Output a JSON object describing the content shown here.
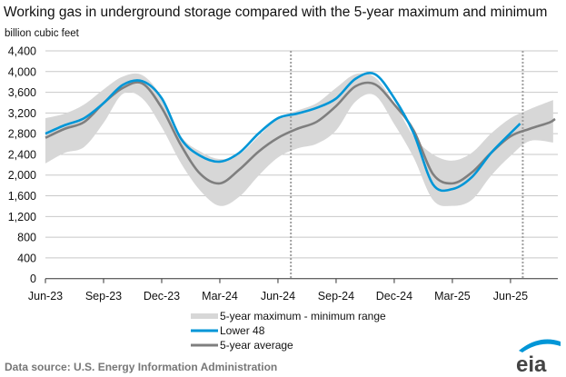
{
  "chart_data": {
    "type": "line",
    "title": "Working gas in underground  storage compared with the 5-year maximum and minimum",
    "ylabel": "billion cubic feet",
    "xlabel": "",
    "ylim": [
      0,
      4400
    ],
    "yticks": [
      "0",
      "400",
      "800",
      "1,200",
      "1,600",
      "2,000",
      "2,400",
      "2,800",
      "3,200",
      "3,600",
      "4,000",
      "4,400"
    ],
    "ytick_values": [
      0,
      400,
      800,
      1200,
      1600,
      2000,
      2400,
      2800,
      3200,
      3600,
      4000,
      4400
    ],
    "xticks": [
      "Jun-23",
      "Sep-23",
      "Dec-23",
      "Mar-24",
      "Jun-24",
      "Sep-24",
      "Dec-24",
      "Mar-25",
      "Jun-25"
    ],
    "xtick_dates": [
      "2023-06-01",
      "2023-09-01",
      "2023-12-01",
      "2024-03-01",
      "2024-06-01",
      "2024-09-01",
      "2024-12-01",
      "2025-03-01",
      "2025-06-01"
    ],
    "xlim": [
      "2023-06-01",
      "2025-08-20"
    ],
    "grid": true,
    "legend_position": "bottom",
    "reference_lines": [
      "2024-06-21",
      "2025-06-20"
    ],
    "band": {
      "name": "5-year maximum - minimum range",
      "x": [
        "2023-06-01",
        "2023-07-01",
        "2023-08-01",
        "2023-09-01",
        "2023-10-01",
        "2023-11-01",
        "2023-12-01",
        "2024-01-01",
        "2024-02-01",
        "2024-03-01",
        "2024-04-01",
        "2024-05-01",
        "2024-06-01",
        "2024-07-01",
        "2024-08-01",
        "2024-09-01",
        "2024-10-01",
        "2024-11-01",
        "2024-12-01",
        "2025-01-01",
        "2025-02-01",
        "2025-03-01",
        "2025-04-01",
        "2025-05-01",
        "2025-06-01",
        "2025-07-01",
        "2025-08-07"
      ],
      "max": [
        3100,
        3190,
        3365,
        3655,
        3905,
        3930,
        3510,
        2750,
        2455,
        2310,
        2400,
        2750,
        3100,
        3245,
        3390,
        3685,
        3950,
        3890,
        3390,
        2750,
        2400,
        2280,
        2430,
        2805,
        3100,
        3275,
        3450
      ],
      "min": [
        2225,
        2430,
        2545,
        3010,
        3570,
        3480,
        2925,
        2225,
        1695,
        1405,
        1580,
        1990,
        2340,
        2515,
        2605,
        2865,
        3420,
        3540,
        2985,
        2340,
        1520,
        1405,
        1520,
        1990,
        2370,
        2660,
        2630
      ]
    },
    "series": [
      {
        "name": "Lower 48",
        "x": [
          "2023-06-01",
          "2023-07-01",
          "2023-08-01",
          "2023-09-01",
          "2023-10-01",
          "2023-11-01",
          "2023-12-01",
          "2024-01-01",
          "2024-02-01",
          "2024-03-01",
          "2024-04-01",
          "2024-05-01",
          "2024-06-01",
          "2024-07-01",
          "2024-08-01",
          "2024-09-01",
          "2024-10-01",
          "2024-11-01",
          "2024-12-01",
          "2025-01-01",
          "2025-02-01",
          "2025-03-01",
          "2025-04-01",
          "2025-05-01",
          "2025-06-01",
          "2025-06-16"
        ],
        "values": [
          2800,
          2965,
          3100,
          3390,
          3745,
          3815,
          3485,
          2700,
          2370,
          2260,
          2430,
          2805,
          3100,
          3190,
          3300,
          3480,
          3860,
          3950,
          3485,
          2810,
          1820,
          1730,
          1960,
          2430,
          2810,
          2995
        ]
      },
      {
        "name": "5-year average",
        "x": [
          "2023-06-01",
          "2023-07-01",
          "2023-08-01",
          "2023-09-01",
          "2023-10-01",
          "2023-11-01",
          "2023-12-01",
          "2024-01-01",
          "2024-02-01",
          "2024-03-01",
          "2024-04-01",
          "2024-05-01",
          "2024-06-01",
          "2024-07-01",
          "2024-08-01",
          "2024-09-01",
          "2024-10-01",
          "2024-11-01",
          "2024-12-01",
          "2025-01-01",
          "2025-02-01",
          "2025-03-01",
          "2025-04-01",
          "2025-05-01",
          "2025-06-01",
          "2025-07-01",
          "2025-08-01",
          "2025-08-10"
        ],
        "values": [
          2720,
          2895,
          3025,
          3390,
          3685,
          3770,
          3300,
          2575,
          2020,
          1840,
          2105,
          2455,
          2720,
          2895,
          3030,
          3335,
          3715,
          3755,
          3365,
          2865,
          2020,
          1840,
          2050,
          2430,
          2750,
          2895,
          3015,
          3085
        ]
      }
    ],
    "colors": {
      "lower48": "#0096d7",
      "average": "#7f7f7f",
      "band": "#d7d7d7",
      "grid": "#c8c8c8"
    }
  },
  "footer": {
    "source": "Data source:  U.S. Energy Information Administration",
    "logo_text": "eia"
  }
}
